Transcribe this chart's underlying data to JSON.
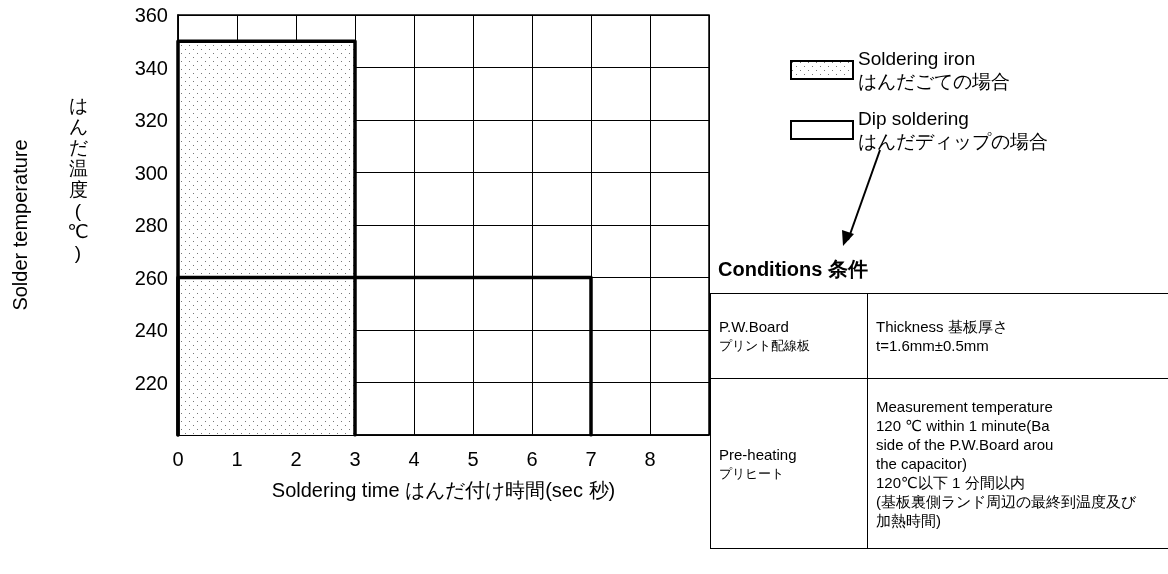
{
  "chart_data": [
    {
      "type": "line",
      "xlabel": "Soldering time はんだ付け時間(sec 秒)",
      "ylabel": "Solder temperature\nはんだ温度(℃)",
      "xlim": [
        0,
        9
      ],
      "xticks": [
        0,
        1,
        2,
        3,
        4,
        5,
        6,
        7,
        8,
        {
          "value": 9,
          "label": null
        }
      ],
      "ylim": [
        200,
        360
      ],
      "yticks": [
        {
          "value": 200,
          "label": null
        },
        220,
        240,
        260,
        280,
        300,
        320,
        340,
        360
      ],
      "grid": true,
      "legend": "top right",
      "marker": "none",
      "line_style": "solid",
      "series": [
        {
          "name": "Soldering iron\nはんだごての場合",
          "type": "area",
          "color": "#000000",
          "x": [
            0,
            0,
            3,
            3
          ],
          "values": [
            200,
            350,
            350,
            200
          ]
        },
        {
          "name": "Dip soldering\nはんだディップの場合",
          "type": "line",
          "color": "#000000",
          "x": [
            0,
            0,
            7,
            7
          ],
          "values": [
            200,
            260,
            260,
            200
          ]
        }
      ]
    },
    {
      "type": "other",
      "title": "Conditions 条件",
      "annotations": [
        "P.W.Board\nプリント配線板",
        "Thickness 基板厚さ\nt=1.6mm±0.5mm",
        "Pre-heating\nプリヒート",
        "Measurement temperature\n120 ℃ within 1 minute(Ba\nside of the P.W.Board arou\nthe capacitor)\n120℃以下 1 分間以内\n(基板裏側ランド周辺の最終到温度及び加熱時間)"
      ]
    }
  ]
}
